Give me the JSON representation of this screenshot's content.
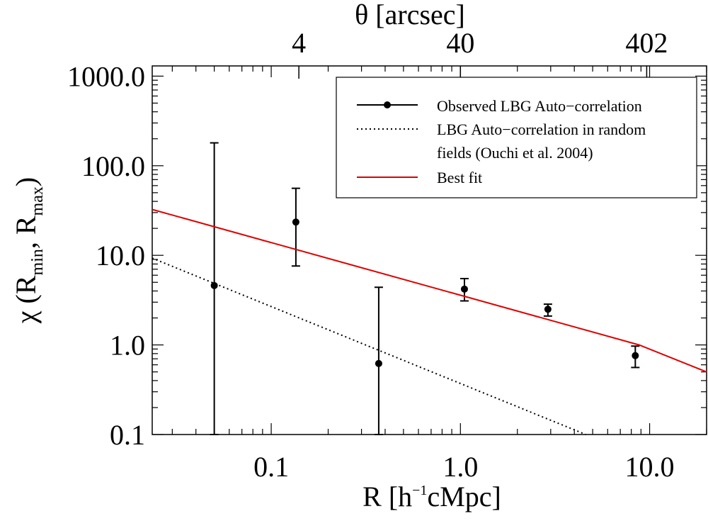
{
  "chart_data": {
    "type": "line",
    "xscale": "log",
    "yscale": "log",
    "xlim": [
      0.0235,
      20.0
    ],
    "ylim": [
      0.1,
      1300
    ],
    "xlabel_parts": {
      "main": "R  [h",
      "sup": "−1",
      "tail": "cMpc]"
    },
    "ylabel_parts": {
      "chi": "χ",
      "open": " (R",
      "sub1": "min",
      "mid": ", R",
      "sub2": "max",
      "close": ")"
    },
    "x_ticks": [
      {
        "value": 0.1,
        "label": "0.1"
      },
      {
        "value": 1.0,
        "label": "1.0"
      },
      {
        "value": 10.0,
        "label": "10.0"
      }
    ],
    "y_ticks": [
      {
        "value": 0.1,
        "label": "0.1"
      },
      {
        "value": 1.0,
        "label": "1.0"
      },
      {
        "value": 10.0,
        "label": "10.0"
      },
      {
        "value": 100.0,
        "label": "100.0"
      },
      {
        "value": 1000.0,
        "label": "1000.0"
      }
    ],
    "top_axis": {
      "label": "θ  [arcsec]",
      "ticks": [
        {
          "r_value": 0.14,
          "label": "4"
        },
        {
          "r_value": 1.0,
          "label": "40"
        },
        {
          "r_value": 9.65,
          "label": "402"
        }
      ]
    },
    "series": [
      {
        "name": "Observed LBG Auto−correlation",
        "style": "points_errorbars",
        "color": "#000000",
        "points": [
          {
            "x": 0.05,
            "y": 4.6,
            "ylo": 0.1,
            "yhi": 180
          },
          {
            "x": 0.135,
            "y": 23.5,
            "ylo": 7.6,
            "yhi": 56
          },
          {
            "x": 0.37,
            "y": 0.62,
            "ylo": 0.1,
            "yhi": 4.4
          },
          {
            "x": 1.05,
            "y": 4.2,
            "ylo": 3.1,
            "yhi": 5.5
          },
          {
            "x": 2.9,
            "y": 2.5,
            "ylo": 2.1,
            "yhi": 2.85
          },
          {
            "x": 8.4,
            "y": 0.76,
            "ylo": 0.56,
            "yhi": 0.97
          }
        ]
      },
      {
        "name": "LBG Auto−correlation in random fields (Ouchi et al. 2004)",
        "legend_lines": [
          "LBG Auto−correlation in random",
          "fields (Ouchi et al. 2004)"
        ],
        "style": "dotted",
        "color": "#000000",
        "x": [
          0.0235,
          4.6
        ],
        "y": [
          9.3,
          0.1
        ]
      },
      {
        "name": "Best fit",
        "style": "solid",
        "color": "#e00000",
        "x": [
          0.0235,
          8.8,
          20.0
        ],
        "y": [
          32.5,
          1.0,
          0.5
        ]
      }
    ],
    "legend_position": "top-right"
  }
}
